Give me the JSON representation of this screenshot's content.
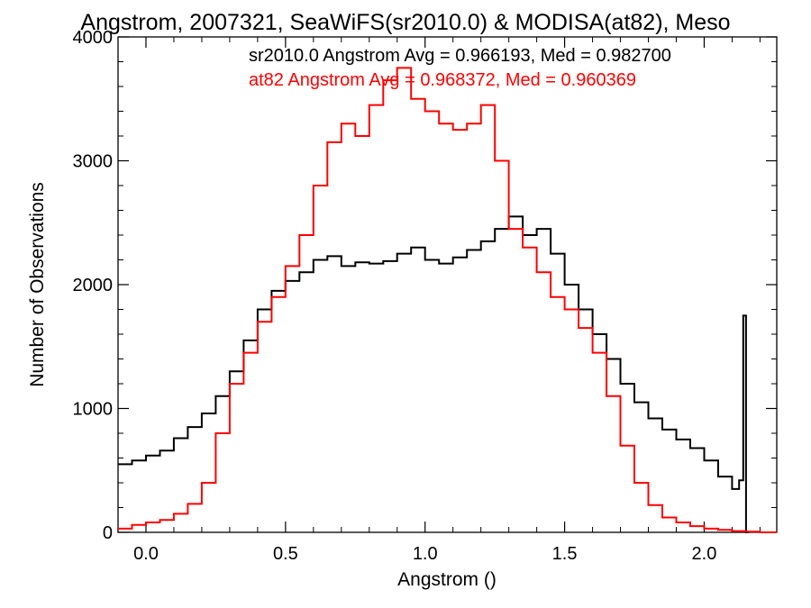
{
  "chart_data": {
    "type": "line",
    "title": "Angstrom, 2007321, SeaWiFS(sr2010.0) & MODISA(at82), Meso",
    "xlabel": "Angstrom ()",
    "ylabel": "Number of Observations",
    "xlim": [
      -0.1,
      2.26
    ],
    "ylim": [
      0,
      4000
    ],
    "xticks": [
      0.0,
      0.5,
      1.0,
      1.5,
      2.0
    ],
    "xtick_labels": [
      "0.0",
      "0.5",
      "1.0",
      "1.5",
      "2.0"
    ],
    "yticks": [
      0,
      1000,
      2000,
      3000,
      4000
    ],
    "ytick_labels": [
      "0",
      "1000",
      "2000",
      "3000",
      "4000"
    ],
    "step": true,
    "grid": false,
    "series": [
      {
        "color": "#000000",
        "x": [
          -0.1,
          -0.05,
          0.0,
          0.05,
          0.1,
          0.15,
          0.2,
          0.25,
          0.3,
          0.35,
          0.4,
          0.45,
          0.5,
          0.55,
          0.6,
          0.65,
          0.7,
          0.75,
          0.8,
          0.85,
          0.9,
          0.95,
          1.0,
          1.05,
          1.1,
          1.15,
          1.2,
          1.25,
          1.3,
          1.35,
          1.4,
          1.45,
          1.5,
          1.55,
          1.6,
          1.65,
          1.7,
          1.75,
          1.8,
          1.85,
          1.9,
          1.95,
          2.0,
          2.05,
          2.1,
          2.125,
          2.14,
          2.15
        ],
        "y": [
          550,
          580,
          620,
          660,
          760,
          850,
          960,
          1100,
          1300,
          1550,
          1800,
          1950,
          2030,
          2100,
          2200,
          2230,
          2150,
          2180,
          2170,
          2190,
          2250,
          2300,
          2200,
          2170,
          2220,
          2280,
          2350,
          2450,
          2550,
          2400,
          2450,
          2250,
          2000,
          1800,
          1600,
          1400,
          1200,
          1050,
          920,
          830,
          750,
          680,
          580,
          450,
          350,
          420,
          1750,
          0
        ]
      },
      {
        "color": "#ff0000",
        "x": [
          -0.1,
          -0.05,
          0.0,
          0.05,
          0.1,
          0.15,
          0.2,
          0.25,
          0.3,
          0.35,
          0.4,
          0.45,
          0.5,
          0.55,
          0.6,
          0.65,
          0.7,
          0.75,
          0.8,
          0.85,
          0.9,
          0.95,
          1.0,
          1.05,
          1.1,
          1.15,
          1.2,
          1.25,
          1.3,
          1.35,
          1.4,
          1.45,
          1.5,
          1.55,
          1.6,
          1.65,
          1.7,
          1.75,
          1.8,
          1.85,
          1.9,
          1.95,
          2.0,
          2.05,
          2.1,
          2.15,
          2.2,
          2.26
        ],
        "y": [
          30,
          60,
          80,
          100,
          150,
          230,
          400,
          800,
          1200,
          1450,
          1700,
          1900,
          2150,
          2400,
          2800,
          3150,
          3300,
          3200,
          3450,
          3650,
          3750,
          3500,
          3400,
          3300,
          3250,
          3300,
          3450,
          3000,
          2450,
          2300,
          2100,
          1900,
          1800,
          1650,
          1450,
          1100,
          700,
          400,
          220,
          120,
          80,
          50,
          30,
          20,
          10,
          5,
          0,
          0
        ]
      }
    ],
    "annotations": [
      {
        "text": "sr2010.0 Angstrom Avg = 0.966193, Med = 0.982700",
        "color": "#000000"
      },
      {
        "text": "at82 Angstrom Avg = 0.968372, Med = 0.960369",
        "color": "#ff0000"
      }
    ]
  }
}
